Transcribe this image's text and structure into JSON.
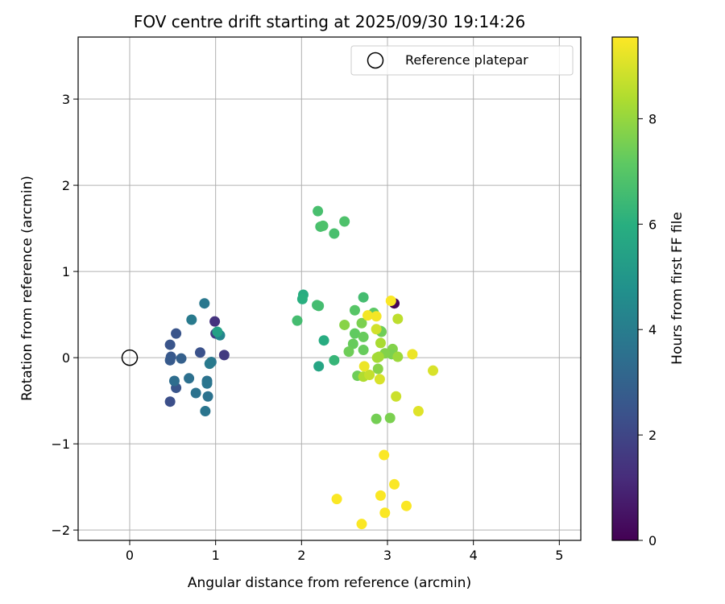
{
  "chart_data": {
    "type": "scatter",
    "title": "FOV centre drift starting at 2025/09/30 19:14:26",
    "xlabel": "Angular distance from reference (arcmin)",
    "ylabel": "Rotation from reference (arcmin)",
    "xlim": [
      -0.6,
      5.25
    ],
    "ylim": [
      -2.12,
      3.72
    ],
    "xticks": [
      0,
      1,
      2,
      3,
      4,
      5
    ],
    "yticks": [
      -2,
      -1,
      0,
      1,
      2,
      3
    ],
    "xtick_labels": [
      "0",
      "1",
      "2",
      "3",
      "4",
      "5"
    ],
    "ytick_labels": [
      "−2",
      "−1",
      "0",
      "1",
      "2",
      "3"
    ],
    "grid": true,
    "legend": {
      "position": "top-right",
      "label": "Reference platepar"
    },
    "reference_point": {
      "x": 0,
      "y": 0
    },
    "colorbar": {
      "label": "Hours from first FF file",
      "cmap": "viridis",
      "min": 0,
      "max": 9.55,
      "ticks": [
        0,
        2,
        4,
        6,
        8
      ],
      "tick_labels": [
        "0",
        "2",
        "4",
        "6",
        "8"
      ]
    },
    "points": [
      {
        "x": 3.08,
        "y": 0.63,
        "c": 0.1
      },
      {
        "x": 0.99,
        "y": 0.42,
        "c": 1.4
      },
      {
        "x": 1.1,
        "y": 0.03,
        "c": 1.6
      },
      {
        "x": 1.0,
        "y": 0.28,
        "c": 1.7
      },
      {
        "x": 0.47,
        "y": -0.51,
        "c": 2.3
      },
      {
        "x": 0.47,
        "y": 0.15,
        "c": 2.5
      },
      {
        "x": 0.54,
        "y": 0.28,
        "c": 2.5
      },
      {
        "x": 0.48,
        "y": 0.01,
        "c": 2.6
      },
      {
        "x": 0.47,
        "y": -0.03,
        "c": 2.7
      },
      {
        "x": 0.54,
        "y": -0.35,
        "c": 2.5
      },
      {
        "x": 0.6,
        "y": -0.01,
        "c": 2.9
      },
      {
        "x": 0.82,
        "y": 0.06,
        "c": 2.4
      },
      {
        "x": 0.52,
        "y": -0.27,
        "c": 3.4
      },
      {
        "x": 0.69,
        "y": -0.24,
        "c": 3.5
      },
      {
        "x": 0.77,
        "y": -0.41,
        "c": 3.6
      },
      {
        "x": 0.72,
        "y": 0.44,
        "c": 3.9
      },
      {
        "x": 0.87,
        "y": 0.63,
        "c": 3.8
      },
      {
        "x": 0.9,
        "y": -0.27,
        "c": 3.6
      },
      {
        "x": 0.9,
        "y": -0.3,
        "c": 3.7
      },
      {
        "x": 0.88,
        "y": -0.62,
        "c": 3.7
      },
      {
        "x": 0.91,
        "y": -0.45,
        "c": 3.6
      },
      {
        "x": 0.95,
        "y": -0.05,
        "c": 3.8
      },
      {
        "x": 0.93,
        "y": -0.07,
        "c": 3.9
      },
      {
        "x": 1.05,
        "y": 0.26,
        "c": 4.3
      },
      {
        "x": 1.02,
        "y": 0.3,
        "c": 5.4
      },
      {
        "x": 2.02,
        "y": 0.73,
        "c": 5.9
      },
      {
        "x": 2.01,
        "y": 0.68,
        "c": 6.0
      },
      {
        "x": 2.2,
        "y": -0.1,
        "c": 5.6
      },
      {
        "x": 2.26,
        "y": 0.2,
        "c": 5.9
      },
      {
        "x": 2.38,
        "y": -0.03,
        "c": 6.3
      },
      {
        "x": 1.95,
        "y": 0.43,
        "c": 6.6
      },
      {
        "x": 2.18,
        "y": 0.61,
        "c": 6.6
      },
      {
        "x": 2.2,
        "y": 0.6,
        "c": 6.6
      },
      {
        "x": 2.19,
        "y": 1.7,
        "c": 6.7
      },
      {
        "x": 2.22,
        "y": 1.52,
        "c": 6.7
      },
      {
        "x": 2.25,
        "y": 1.53,
        "c": 6.8
      },
      {
        "x": 2.38,
        "y": 1.44,
        "c": 6.7
      },
      {
        "x": 2.5,
        "y": 1.58,
        "c": 6.8
      },
      {
        "x": 2.72,
        "y": 0.7,
        "c": 6.6
      },
      {
        "x": 2.62,
        "y": 0.55,
        "c": 7.0
      },
      {
        "x": 2.84,
        "y": 0.52,
        "c": 7.1
      },
      {
        "x": 2.62,
        "y": 0.28,
        "c": 7.2
      },
      {
        "x": 2.6,
        "y": 0.16,
        "c": 7.3
      },
      {
        "x": 2.72,
        "y": 0.24,
        "c": 7.3
      },
      {
        "x": 2.55,
        "y": 0.07,
        "c": 7.4
      },
      {
        "x": 2.72,
        "y": 0.09,
        "c": 7.3
      },
      {
        "x": 2.65,
        "y": -0.21,
        "c": 7.4
      },
      {
        "x": 2.93,
        "y": 0.3,
        "c": 7.5
      },
      {
        "x": 2.92,
        "y": 0.31,
        "c": 7.4
      },
      {
        "x": 2.87,
        "y": -0.71,
        "c": 7.5
      },
      {
        "x": 3.03,
        "y": -0.7,
        "c": 7.6
      },
      {
        "x": 2.5,
        "y": 0.38,
        "c": 7.8
      },
      {
        "x": 2.7,
        "y": 0.4,
        "c": 7.6
      },
      {
        "x": 3.06,
        "y": 0.1,
        "c": 7.7
      },
      {
        "x": 3.05,
        "y": 0.04,
        "c": 7.6
      },
      {
        "x": 2.89,
        "y": -0.13,
        "c": 7.8
      },
      {
        "x": 2.97,
        "y": 0.05,
        "c": 7.7
      },
      {
        "x": 3.12,
        "y": 0.01,
        "c": 8.1
      },
      {
        "x": 3.12,
        "y": 0.45,
        "c": 8.6
      },
      {
        "x": 2.88,
        "y": 0.0,
        "c": 8.3
      },
      {
        "x": 2.9,
        "y": 0.01,
        "c": 8.2
      },
      {
        "x": 2.92,
        "y": 0.17,
        "c": 8.3
      },
      {
        "x": 2.72,
        "y": -0.22,
        "c": 8.4
      },
      {
        "x": 2.79,
        "y": -0.2,
        "c": 8.7
      },
      {
        "x": 2.87,
        "y": 0.33,
        "c": 8.9
      },
      {
        "x": 2.91,
        "y": -0.25,
        "c": 9.0
      },
      {
        "x": 3.1,
        "y": -0.45,
        "c": 8.8
      },
      {
        "x": 2.73,
        "y": -0.1,
        "c": 9.3
      },
      {
        "x": 2.77,
        "y": 0.49,
        "c": 9.4
      },
      {
        "x": 2.87,
        "y": 0.48,
        "c": 9.4
      },
      {
        "x": 3.04,
        "y": 0.66,
        "c": 9.5
      },
      {
        "x": 3.29,
        "y": 0.04,
        "c": 9.3
      },
      {
        "x": 3.36,
        "y": -0.62,
        "c": 9.1
      },
      {
        "x": 3.53,
        "y": -0.15,
        "c": 9.0
      },
      {
        "x": 2.96,
        "y": -1.13,
        "c": 9.5
      },
      {
        "x": 2.41,
        "y": -1.64,
        "c": 9.5
      },
      {
        "x": 2.92,
        "y": -1.6,
        "c": 9.5
      },
      {
        "x": 3.08,
        "y": -1.47,
        "c": 9.5
      },
      {
        "x": 3.22,
        "y": -1.72,
        "c": 9.5
      },
      {
        "x": 2.97,
        "y": -1.8,
        "c": 9.5
      },
      {
        "x": 2.7,
        "y": -1.93,
        "c": 9.5
      }
    ]
  }
}
